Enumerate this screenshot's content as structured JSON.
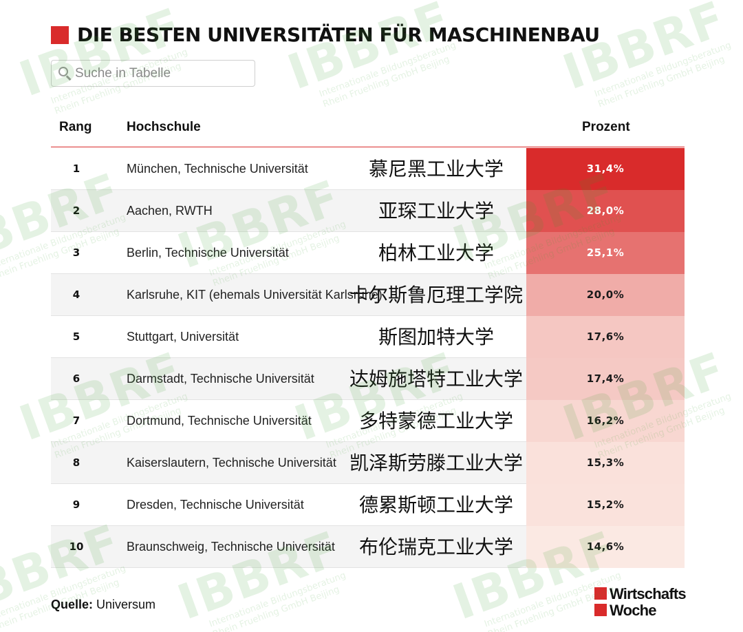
{
  "title": "DIE BESTEN UNIVERSITÄTEN FÜR MASCHINENBAU",
  "search": {
    "placeholder": "Suche in Tabelle"
  },
  "columns": {
    "rang": "Rang",
    "hochschule": "Hochschule",
    "prozent": "Prozent"
  },
  "rows": [
    {
      "rank": "1",
      "school": "München, Technische Universität",
      "chinese": "慕尼黑工业大学",
      "percent": "31,4%",
      "value": 31.4
    },
    {
      "rank": "2",
      "school": "Aachen, RWTH",
      "chinese": "亚琛工业大学",
      "percent": "28,0%",
      "value": 28.0
    },
    {
      "rank": "3",
      "school": "Berlin, Technische Universität",
      "chinese": "柏林工业大学",
      "percent": "25,1%",
      "value": 25.1
    },
    {
      "rank": "4",
      "school": "Karlsruhe, KIT (ehemals Universität Karlsruhe)",
      "chinese": "卡尔斯鲁厄理工学院",
      "percent": "20,0%",
      "value": 20.0
    },
    {
      "rank": "5",
      "school": "Stuttgart, Universität",
      "chinese": "斯图加特大学",
      "percent": "17,6%",
      "value": 17.6
    },
    {
      "rank": "6",
      "school": "Darmstadt, Technische Universität",
      "chinese": "达姆施塔特工业大学",
      "percent": "17,4%",
      "value": 17.4
    },
    {
      "rank": "7",
      "school": "Dortmund, Technische Universität",
      "chinese": "多特蒙德工业大学",
      "percent": "16,2%",
      "value": 16.2
    },
    {
      "rank": "8",
      "school": "Kaiserslautern, Technische Universität",
      "chinese": "凯泽斯劳滕工业大学",
      "percent": "15,3%",
      "value": 15.3
    },
    {
      "rank": "9",
      "school": "Dresden, Technische Universität",
      "chinese": "德累斯顿工业大学",
      "percent": "15,2%",
      "value": 15.2
    },
    {
      "rank": "10",
      "school": "Braunschweig, Technische Universität",
      "chinese": "布伦瑞克工业大学",
      "percent": "14,6%",
      "value": 14.6
    }
  ],
  "source": {
    "label": "Quelle:",
    "value": "Universum"
  },
  "logo": {
    "line1": "Wirtschafts",
    "line2": "Woche"
  },
  "watermark": {
    "big": "IBBRF",
    "line1": "Internationale Bildungsberatung",
    "line2": "Rhein Fruehling GmbH Beijing"
  },
  "colors": {
    "accent": "#d92b2b",
    "heat_max": "#d92b2b",
    "heat_min": "#fbe9e3"
  }
}
